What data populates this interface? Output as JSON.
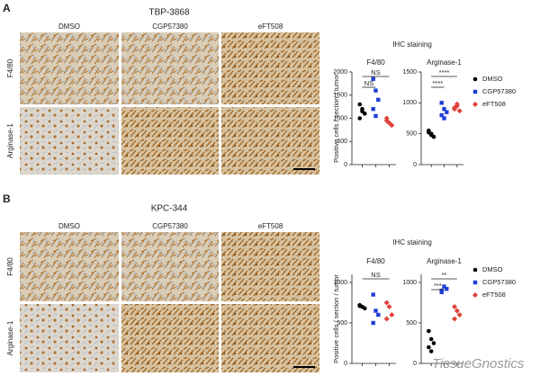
{
  "panels": [
    {
      "label": "A",
      "title": "TBP-3868",
      "columns": [
        "DMSO",
        "CGP57380",
        "eFT508"
      ],
      "rows": [
        "F4/80",
        "Arginase-1"
      ],
      "chart_heading": "IHC staining",
      "y_label": "Positive cells / section / tumor"
    },
    {
      "label": "B",
      "title": "KPC-344",
      "columns": [
        "DMSO",
        "CGP57380",
        "eFT508"
      ],
      "rows": [
        "F4/80",
        "Arginase-1"
      ],
      "chart_heading": "IHC staining",
      "y_label": "Positive cells / section / tumor"
    }
  ],
  "chart_data": [
    {
      "type": "strip",
      "title": "F4/80",
      "ylim": [
        0,
        2000
      ],
      "yticks": [
        0,
        500,
        1000,
        1500,
        2000
      ],
      "annotations": [
        "NS",
        "NS"
      ],
      "series": [
        {
          "name": "DMSO",
          "color": "#000000",
          "marker": "circle",
          "values": [
            1300,
            1200,
            1100,
            1000,
            1150
          ]
        },
        {
          "name": "CGP57380",
          "color": "#1f3fd6",
          "marker": "square",
          "values": [
            1850,
            1600,
            1400,
            1200,
            1050
          ]
        },
        {
          "name": "eFT508",
          "color": "#e0413a",
          "marker": "diamond",
          "values": [
            1000,
            900,
            850,
            950
          ]
        }
      ]
    },
    {
      "type": "strip",
      "title": "Arginase-1",
      "ylim": [
        0,
        1500
      ],
      "yticks": [
        0,
        500,
        1000,
        1500
      ],
      "annotations": [
        "****",
        "****"
      ],
      "series": [
        {
          "name": "DMSO",
          "color": "#000000",
          "marker": "circle",
          "values": [
            550,
            500,
            450,
            520,
            480
          ]
        },
        {
          "name": "CGP57380",
          "color": "#1f3fd6",
          "marker": "square",
          "values": [
            1000,
            900,
            850,
            800,
            750
          ]
        },
        {
          "name": "eFT508",
          "color": "#e0413a",
          "marker": "diamond",
          "values": [
            900,
            950,
            870,
            920,
            980
          ]
        }
      ]
    },
    {
      "type": "strip",
      "title": "F4/80",
      "ylim": [
        0,
        1100
      ],
      "yticks": [
        0,
        500,
        1000
      ],
      "annotations": [
        "NS"
      ],
      "series": [
        {
          "name": "DMSO",
          "color": "#000000",
          "marker": "circle",
          "values": [
            720,
            700,
            680,
            710
          ]
        },
        {
          "name": "CGP57380",
          "color": "#1f3fd6",
          "marker": "square",
          "values": [
            850,
            650,
            600,
            500
          ]
        },
        {
          "name": "eFT508",
          "color": "#e0413a",
          "marker": "diamond",
          "values": [
            750,
            700,
            600,
            550
          ]
        }
      ]
    },
    {
      "type": "strip",
      "title": "Arginase-1",
      "ylim": [
        0,
        1100
      ],
      "yticks": [
        0,
        500,
        1000
      ],
      "annotations": [
        "**",
        "***"
      ],
      "series": [
        {
          "name": "DMSO",
          "color": "#000000",
          "marker": "circle",
          "values": [
            400,
            300,
            250,
            200,
            150
          ]
        },
        {
          "name": "CGP57380",
          "color": "#1f3fd6",
          "marker": "square",
          "values": [
            900,
            950,
            920,
            880
          ]
        },
        {
          "name": "eFT508",
          "color": "#e0413a",
          "marker": "diamond",
          "values": [
            700,
            650,
            600,
            550
          ]
        }
      ]
    }
  ],
  "watermark": "TissueGnostics"
}
